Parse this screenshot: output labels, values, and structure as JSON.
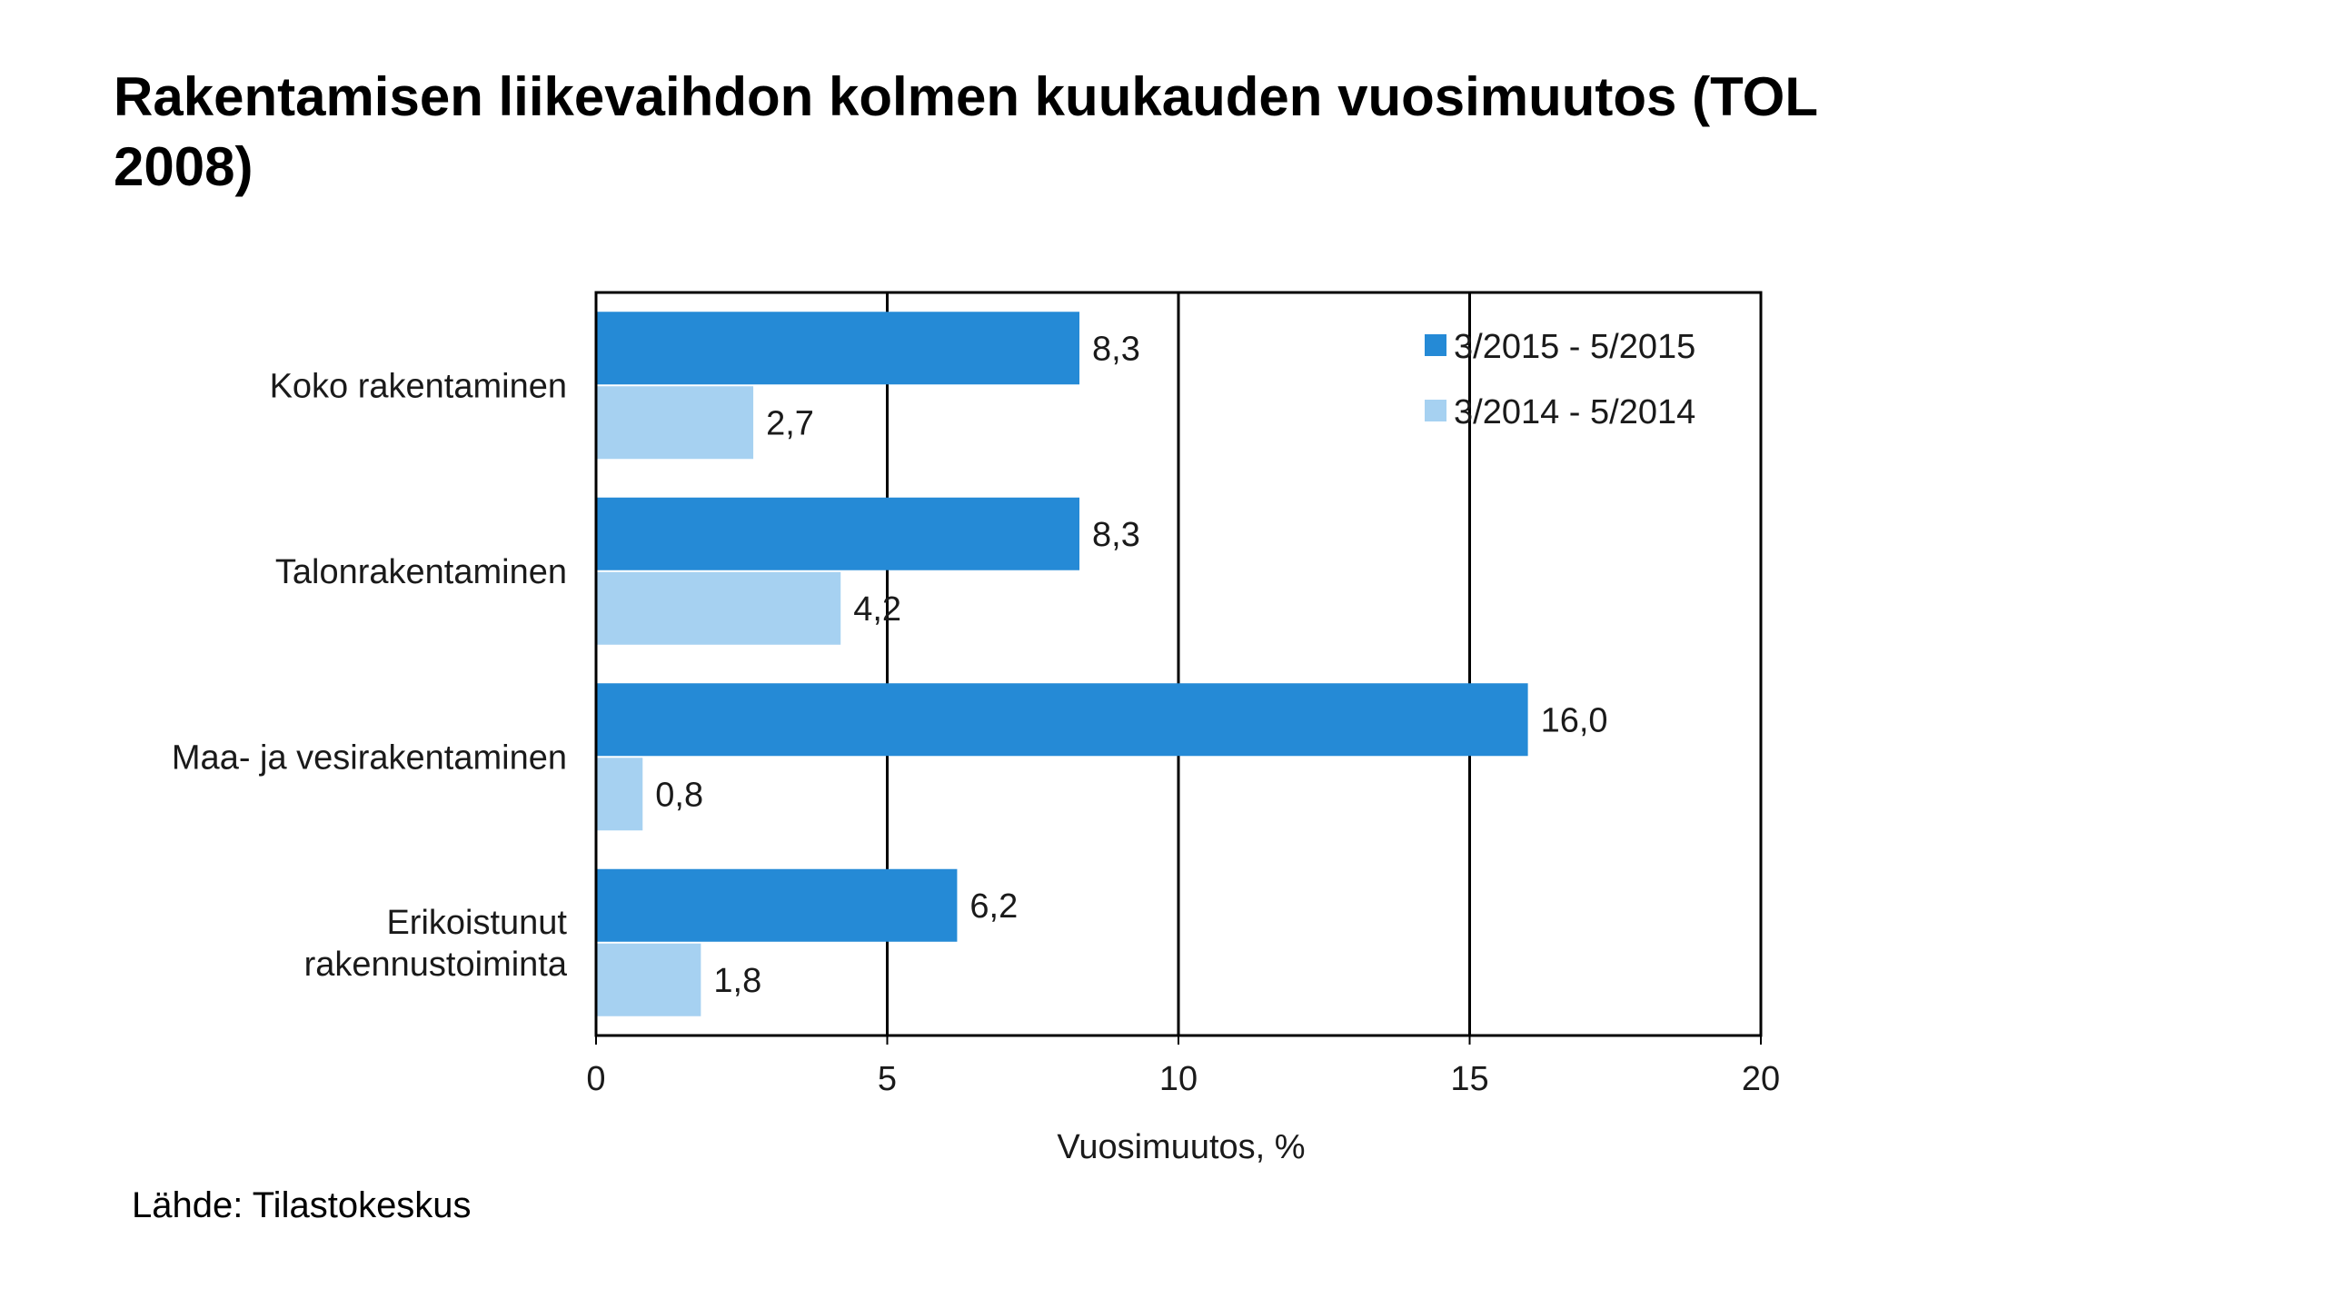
{
  "title": "Rakentamisen liikevaihdon kolmen kuukauden vuosimuutos (TOL 2008)",
  "source": "Lähde: Tilastokeskus",
  "colors": {
    "series_2015": "#258ad6",
    "series_2014": "#a6d1f1"
  },
  "chart_data": {
    "type": "bar",
    "orientation": "horizontal",
    "categories": [
      [
        "Koko rakentaminen"
      ],
      [
        "Talonrakentaminen"
      ],
      [
        "Maa- ja vesirakentaminen"
      ],
      [
        "Erikoistunut",
        "rakennustoiminta"
      ]
    ],
    "series": [
      {
        "name": "3/2015 - 5/2015",
        "values": [
          8.3,
          8.3,
          16.0,
          6.2
        ],
        "labels": [
          "8,3",
          "8,3",
          "16,0",
          "6,2"
        ]
      },
      {
        "name": "3/2014 - 5/2014",
        "values": [
          2.7,
          4.2,
          0.8,
          1.8
        ],
        "labels": [
          "2,7",
          "4,2",
          "0,8",
          "1,8"
        ]
      }
    ],
    "xlabel": "Vuosimuutos, %",
    "xlim": [
      0,
      20
    ],
    "xticks": [
      "0",
      "5",
      "10",
      "15",
      "20"
    ],
    "grid": "vertical",
    "legend": "top-right"
  }
}
